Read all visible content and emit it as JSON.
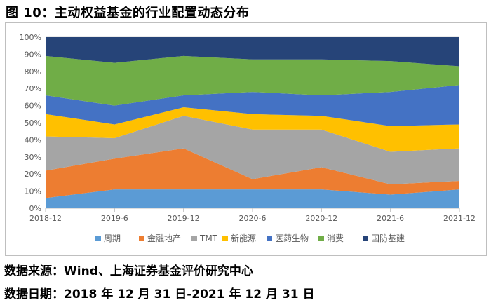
{
  "title": "图 10：主动权益基金的行业配置动态分布",
  "footer": {
    "source": "数据来源：Wind、上海证券基金评价研究中心",
    "date": "数据日期：2018 年 12 月 31 日-2021 年 12 月 31 日"
  },
  "chart_data": {
    "type": "area",
    "stacked": true,
    "categories": [
      "2018-12",
      "2019-6",
      "2019-12",
      "2020-6",
      "2020-12",
      "2021-6",
      "2021-12"
    ],
    "y_ticks": [
      "0%",
      "10%",
      "20%",
      "30%",
      "40%",
      "50%",
      "60%",
      "70%",
      "80%",
      "90%",
      "100%"
    ],
    "ylim": [
      0,
      100
    ],
    "grid": true,
    "legend_position": "bottom",
    "series": [
      {
        "name": "周期",
        "color": "#5B9BD5",
        "values": [
          6,
          11,
          11,
          11,
          11,
          8,
          11
        ]
      },
      {
        "name": "金融地产",
        "color": "#ED7D31",
        "values": [
          16,
          18,
          24,
          6,
          13,
          6,
          5
        ]
      },
      {
        "name": "TMT",
        "color": "#A5A5A5",
        "values": [
          20,
          12,
          19,
          29,
          22,
          19,
          19
        ]
      },
      {
        "name": "新能源",
        "color": "#FFC000",
        "values": [
          13,
          8,
          5,
          9,
          8,
          15,
          14
        ]
      },
      {
        "name": "医药生物",
        "color": "#4472C4",
        "values": [
          11,
          11,
          7,
          13,
          12,
          20,
          23
        ]
      },
      {
        "name": "消费",
        "color": "#70AD47",
        "values": [
          23,
          25,
          23,
          19,
          21,
          18,
          11
        ]
      },
      {
        "name": "国防基建",
        "color": "#264478",
        "values": [
          11,
          15,
          11,
          13,
          13,
          14,
          17
        ]
      }
    ]
  }
}
